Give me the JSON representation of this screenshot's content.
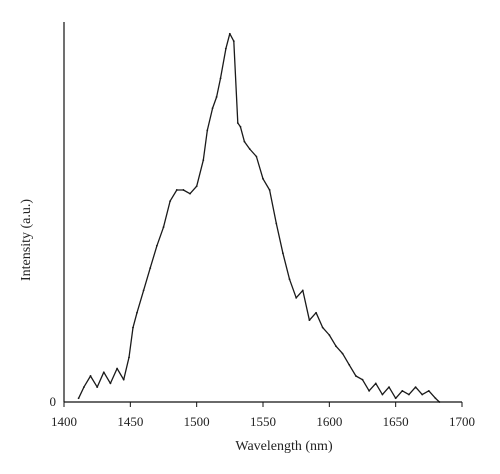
{
  "chart_data": {
    "type": "line",
    "xlabel": "Wavelength (nm)",
    "ylabel": "Intensity (a.u.)",
    "xlim": [
      1400,
      1700
    ],
    "xticks": [
      1400,
      1450,
      1500,
      1550,
      1600,
      1650,
      1700
    ],
    "ylim": [
      0,
      1
    ],
    "yticks": [
      0
    ],
    "ytick_labels": [
      "0"
    ],
    "grid": false,
    "legend": "none",
    "series": [
      {
        "x": [
          1411,
          1415,
          1420,
          1425,
          1430,
          1435,
          1440,
          1445,
          1449,
          1452,
          1455,
          1460,
          1465,
          1470,
          1475,
          1480,
          1485,
          1490,
          1495,
          1500,
          1505,
          1508,
          1512,
          1515,
          1518,
          1522,
          1525,
          1528,
          1531,
          1533,
          1536,
          1540,
          1545,
          1550,
          1555,
          1560,
          1565,
          1570,
          1575,
          1580,
          1585,
          1590,
          1595,
          1600,
          1605,
          1610,
          1615,
          1620,
          1625,
          1630,
          1635,
          1640,
          1645,
          1650,
          1655,
          1660,
          1665,
          1670,
          1675,
          1680,
          1683
        ],
        "y": [
          0.01,
          0.04,
          0.07,
          0.04,
          0.08,
          0.05,
          0.09,
          0.06,
          0.12,
          0.2,
          0.24,
          0.3,
          0.36,
          0.42,
          0.47,
          0.54,
          0.57,
          0.57,
          0.56,
          0.58,
          0.65,
          0.73,
          0.79,
          0.82,
          0.87,
          0.95,
          0.99,
          0.97,
          0.75,
          0.74,
          0.7,
          0.68,
          0.66,
          0.6,
          0.57,
          0.48,
          0.4,
          0.33,
          0.28,
          0.3,
          0.22,
          0.24,
          0.2,
          0.18,
          0.15,
          0.13,
          0.1,
          0.07,
          0.06,
          0.03,
          0.05,
          0.02,
          0.04,
          0.01,
          0.03,
          0.02,
          0.04,
          0.02,
          0.03,
          0.01,
          0.0
        ]
      }
    ]
  }
}
